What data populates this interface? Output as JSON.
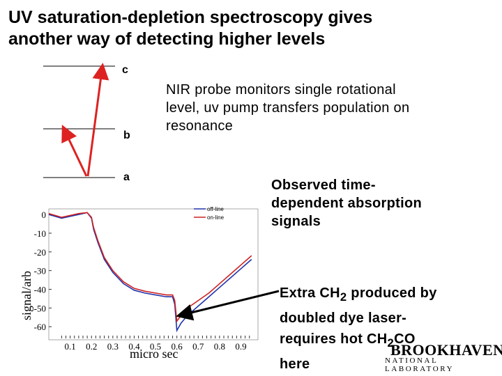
{
  "slide": {
    "title_line1": "UV saturation-depletion spectroscopy gives",
    "title_line2": "another way of detecting higher levels",
    "levels": [
      "c",
      "b",
      "a"
    ],
    "nir_text": [
      "NIR probe monitors single rotational",
      "level, uv pump transfers population on",
      "resonance"
    ],
    "observed_text": [
      "Observed time-",
      "dependent absorption",
      "signals"
    ],
    "extra_line1_pre": "Extra CH",
    "extra_line1_sub": "2",
    "extra_line1_post": " produced by",
    "extra_line2": "doubled dye laser-",
    "extra_line3_pre": "requires hot CH",
    "extra_line3_sub": "2",
    "extra_line3_post": "CO",
    "extra_line4": "here",
    "logo_main": "BROOKHAVEN",
    "logo_sub": "NATIONAL LABORATORY"
  },
  "colors": {
    "off_line": "#2233aa",
    "on_line": "#cc2222",
    "arrow_red": "#dd2222"
  },
  "chart_data": {
    "type": "line",
    "title": "",
    "xlabel": "micro sec",
    "ylabel": "signal/arb",
    "xlim": [
      0.0,
      0.98
    ],
    "ylim": [
      -67,
      3
    ],
    "x_ticks": [
      "0.1",
      "0.2",
      "0.3",
      "0.4",
      "0.5",
      "0.6",
      "0.7",
      "0.8",
      "0.9"
    ],
    "y_ticks": [
      "0",
      "-10",
      "-20",
      "-30",
      "-40",
      "-50",
      "-60"
    ],
    "legend": [
      "off-line",
      "on-line"
    ],
    "series": [
      {
        "name": "off-line",
        "x": [
          0.0,
          0.03,
          0.06,
          0.1,
          0.14,
          0.18,
          0.2,
          0.21,
          0.23,
          0.26,
          0.3,
          0.35,
          0.4,
          0.45,
          0.5,
          0.55,
          0.58,
          0.59,
          0.6,
          0.62,
          0.65,
          0.7,
          0.75,
          0.8,
          0.85,
          0.9,
          0.95
        ],
        "y": [
          0,
          -1,
          -2,
          -1,
          0,
          1,
          -2,
          -8,
          -15,
          -24,
          -31,
          -37,
          -40.5,
          -42,
          -43,
          -44,
          -44,
          -48,
          -62,
          -58,
          -54,
          -49,
          -44,
          -39,
          -34,
          -29,
          -24
        ]
      },
      {
        "name": "on-line",
        "x": [
          0.0,
          0.03,
          0.06,
          0.1,
          0.14,
          0.18,
          0.2,
          0.21,
          0.23,
          0.26,
          0.3,
          0.35,
          0.4,
          0.45,
          0.5,
          0.55,
          0.58,
          0.59,
          0.6,
          0.62,
          0.65,
          0.7,
          0.75,
          0.8,
          0.85,
          0.9,
          0.95
        ],
        "y": [
          0.5,
          -0.5,
          -1.5,
          -0.5,
          0.5,
          1,
          -1.5,
          -7,
          -14,
          -23,
          -30,
          -36,
          -39.5,
          -41,
          -42,
          -43,
          -43,
          -46,
          -57,
          -54,
          -50,
          -46,
          -42,
          -37,
          -32,
          -27,
          -22
        ]
      }
    ]
  }
}
